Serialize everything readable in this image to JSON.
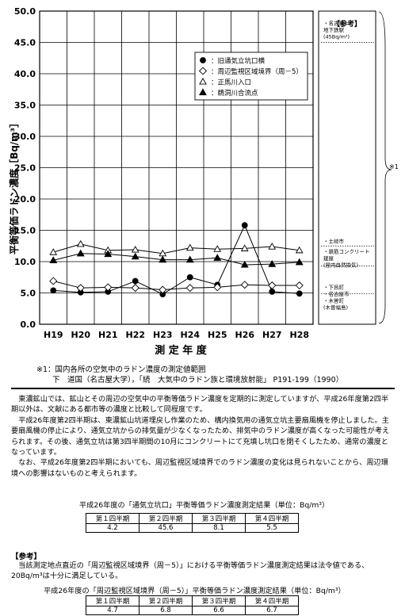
{
  "chart_data": {
    "type": "line",
    "ylabel": "平衡等価ラドン濃度［Bq/m³］",
    "xlabel": "測 定 年 度",
    "categories": [
      "H19",
      "H20",
      "H21",
      "H22",
      "H23",
      "H24",
      "H25",
      "H26",
      "H27",
      "H28"
    ],
    "ylim": [
      0,
      50
    ],
    "yticks": [
      "0.0",
      "5.0",
      "10.0",
      "15.0",
      "20.0",
      "25.0",
      "30.0",
      "35.0",
      "40.0",
      "45.0",
      "50.0"
    ],
    "grid": true,
    "legend_position": "top-right",
    "series": [
      {
        "name": "旧通気立坑口横",
        "marker": "filled-circle",
        "values": [
          5.4,
          5.1,
          5.2,
          6.9,
          4.8,
          7.5,
          6.3,
          15.8,
          5.2,
          4.9
        ]
      },
      {
        "name": "周辺監視区域境界（周－5）",
        "marker": "open-diamond",
        "values": [
          6.9,
          5.8,
          5.9,
          5.8,
          5.5,
          5.8,
          5.9,
          6.3,
          6.2,
          6.2
        ]
      },
      {
        "name": "正馬川入口",
        "marker": "open-triangle",
        "values": [
          11.5,
          12.8,
          11.8,
          11.9,
          11.3,
          12.2,
          12.0,
          12.1,
          12.4,
          11.8
        ]
      },
      {
        "name": "鵜洞川合流点",
        "marker": "filled-triangle",
        "values": [
          10.2,
          11.3,
          11.2,
          10.8,
          10.3,
          10.3,
          10.6,
          9.5,
          9.6,
          9.9
        ]
      }
    ],
    "reference_lines": [
      {
        "label": "・名古屋\n地下鉄駅\n(45Bq/m³)",
        "value": 45
      },
      {
        "label": "・土岐市",
        "value": 12.5
      },
      {
        "label": "・鉄筋コンクリート\n建屋\n(屋内自然換気)",
        "value": 9.3
      },
      {
        "label": "・下呂町\n・名古屋市\n・木曽町\n(木曽福島)",
        "value": 4.9
      }
    ],
    "reference_title": "【参考】",
    "bracket_note": "※1"
  },
  "footnote": {
    "line1": "※1：国内各所の空気中のラドン濃度の測定値範囲",
    "line2": "下　道国（名古屋大学），「続　大気中のラドン族と環境放射能」 P191-199（1990）"
  },
  "body": {
    "p1": "東濃鉱山では、鉱山とその周辺の空気中の平衡等価ラドン濃度を定期的に測定していますが、平成26年度第2四半期以外は、文献にある都市等の濃度と比較して同程度です。",
    "p2": "平成26年度第2四半期は、東濃鉱山坑道埋戻し作業のため、構内換気用の通気立坑主要扇風機を停止しました。主要扇風機の停止により、通気立坑からの排気量が少なくなったため、排気中のラドン濃度が高くなった可能性が考えられます。その後、通気立坑は第3四半期間の10月にコンクリートにて充填し坑口を閉そくしたため、通常の濃度となっています。",
    "p3": "なお、平成26年度第2四半期においても、周辺監視区域境界でのラドン濃度の変化は見られないことから、周辺環境への影響はないものと考えられます。"
  },
  "table1": {
    "caption": "平成26年度の「通気立坑口」平衡等価ラドン濃度測定結果（単位：Bq/m³）",
    "headers": [
      "第１四半期",
      "第２四半期",
      "第３四半期",
      "第４四半期"
    ],
    "values": [
      "4.2",
      "45.6",
      "8.1",
      "5.5"
    ]
  },
  "reference": {
    "title": "【参考】",
    "text": "当該測定地点直近の「周辺監視区域境界（周－5）」における平衡等価ラドン濃度測定結果は法令値である、20Bq/m³は十分に満足している。"
  },
  "table2": {
    "caption": "平成26年度の「周辺監視区域境界（周－5）」平衡等価ラドン濃度測定結果（単位：Bq/m³）",
    "headers": [
      "第１四半期",
      "第２四半期",
      "第３四半期",
      "第４四半期"
    ],
    "values": [
      "4.7",
      "6.8",
      "6.6",
      "6.7"
    ]
  }
}
